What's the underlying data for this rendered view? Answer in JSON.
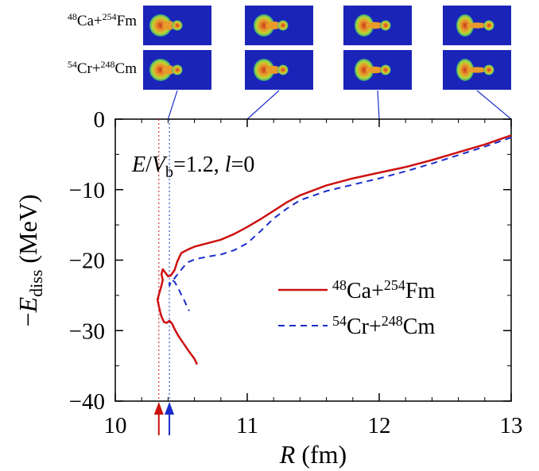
{
  "chart_data": {
    "type": "line",
    "xlabel": "R (fm)",
    "ylabel": "−E_diss (MeV)",
    "xlim": [
      10,
      13
    ],
    "ylim": [
      -40,
      0
    ],
    "x_ticks": [
      "10",
      "11",
      "12",
      "13"
    ],
    "y_ticks": [
      "0",
      "−10",
      "−20",
      "−30",
      "−40"
    ],
    "annotation": "E/V_b=1.2, l=0",
    "series": [
      {
        "name": "48Ca+254Fm",
        "color": "#cc1111",
        "style": "solid",
        "x": [
          13.0,
          12.8,
          12.6,
          12.4,
          12.2,
          12.0,
          11.8,
          11.6,
          11.4,
          11.3,
          11.2,
          11.1,
          11.0,
          10.9,
          10.8,
          10.7,
          10.6,
          10.55,
          10.5,
          10.47,
          10.45,
          10.42,
          10.4,
          10.38,
          10.36,
          10.35,
          10.36,
          10.35,
          10.34,
          10.33,
          10.32,
          10.33,
          10.34,
          10.35,
          10.37,
          10.39,
          10.41,
          10.43,
          10.45,
          10.48,
          10.52,
          10.56,
          10.6,
          10.62
        ],
        "y": [
          -2.3,
          -3.6,
          -4.7,
          -5.8,
          -6.8,
          -7.6,
          -8.4,
          -9.4,
          -10.8,
          -11.8,
          -13.0,
          -14.2,
          -15.3,
          -16.3,
          -17.1,
          -17.6,
          -18.1,
          -18.5,
          -19.0,
          -20.2,
          -21.4,
          -22.2,
          -22.3,
          -21.8,
          -21.3,
          -22.0,
          -22.8,
          -23.6,
          -24.3,
          -24.9,
          -25.6,
          -26.5,
          -27.3,
          -28.0,
          -28.8,
          -28.9,
          -28.6,
          -29.0,
          -29.8,
          -30.8,
          -31.9,
          -33.0,
          -34.0,
          -34.8
        ]
      },
      {
        "name": "54Cr+248Cm",
        "color": "#1a2ccc",
        "style": "dashed",
        "x": [
          13.0,
          12.8,
          12.6,
          12.4,
          12.2,
          12.0,
          11.8,
          11.6,
          11.4,
          11.3,
          11.2,
          11.1,
          11.0,
          10.9,
          10.8,
          10.7,
          10.6,
          10.55,
          10.52,
          10.49,
          10.46,
          10.44,
          10.42,
          10.41,
          10.41,
          10.43,
          10.45,
          10.48,
          10.5,
          10.52,
          10.54,
          10.56
        ],
        "y": [
          -2.6,
          -3.9,
          -5.1,
          -6.3,
          -7.4,
          -8.4,
          -9.3,
          -10.2,
          -11.5,
          -12.7,
          -14.1,
          -15.9,
          -17.6,
          -18.6,
          -19.2,
          -19.5,
          -19.9,
          -20.3,
          -20.9,
          -21.6,
          -22.3,
          -22.8,
          -23.2,
          -23.6,
          -23.0,
          -22.8,
          -23.1,
          -24.1,
          -24.9,
          -25.6,
          -26.4,
          -27.2
        ]
      }
    ],
    "markers": [
      {
        "x": 10.33,
        "color": "#cc1111"
      },
      {
        "x": 10.41,
        "color": "#1a2ccc"
      }
    ],
    "legend": {
      "placement": "lower-right",
      "entries": [
        {
          "label_pre": "48",
          "label_a": "Ca+",
          "label_sup": "254",
          "label_b": "Fm",
          "color": "#cc1111",
          "style": "solid"
        },
        {
          "label_pre": "54",
          "label_a": "Cr+",
          "label_sup": "248",
          "label_b": "Cm",
          "color": "#1a2ccc",
          "style": "dashed"
        }
      ]
    },
    "snapshots": {
      "rows": [
        {
          "label_pre": "48",
          "label_a": "Ca+",
          "label_sup": "254",
          "label_b": "Fm"
        },
        {
          "label_pre": "54",
          "label_a": "Cr+",
          "label_sup": "248",
          "label_b": "Cm"
        }
      ],
      "connector_x": [
        10.4,
        11.0,
        12.0,
        13.0
      ],
      "background_color": "#1b24b8",
      "neck_level": [
        0.9,
        0.75,
        0.55,
        0.4
      ]
    }
  },
  "annotation_parts": {
    "e": "E",
    "slash": "/",
    "v": "V",
    "v_sub": "b",
    "val": "=1.2,  ",
    "l": "l",
    "l_val": "=0"
  },
  "axis_parts": {
    "y_minus": "−",
    "y_e": "E",
    "y_sub": "diss",
    "y_unit": " (MeV)",
    "x_r": "R",
    "x_unit": " (fm)"
  }
}
